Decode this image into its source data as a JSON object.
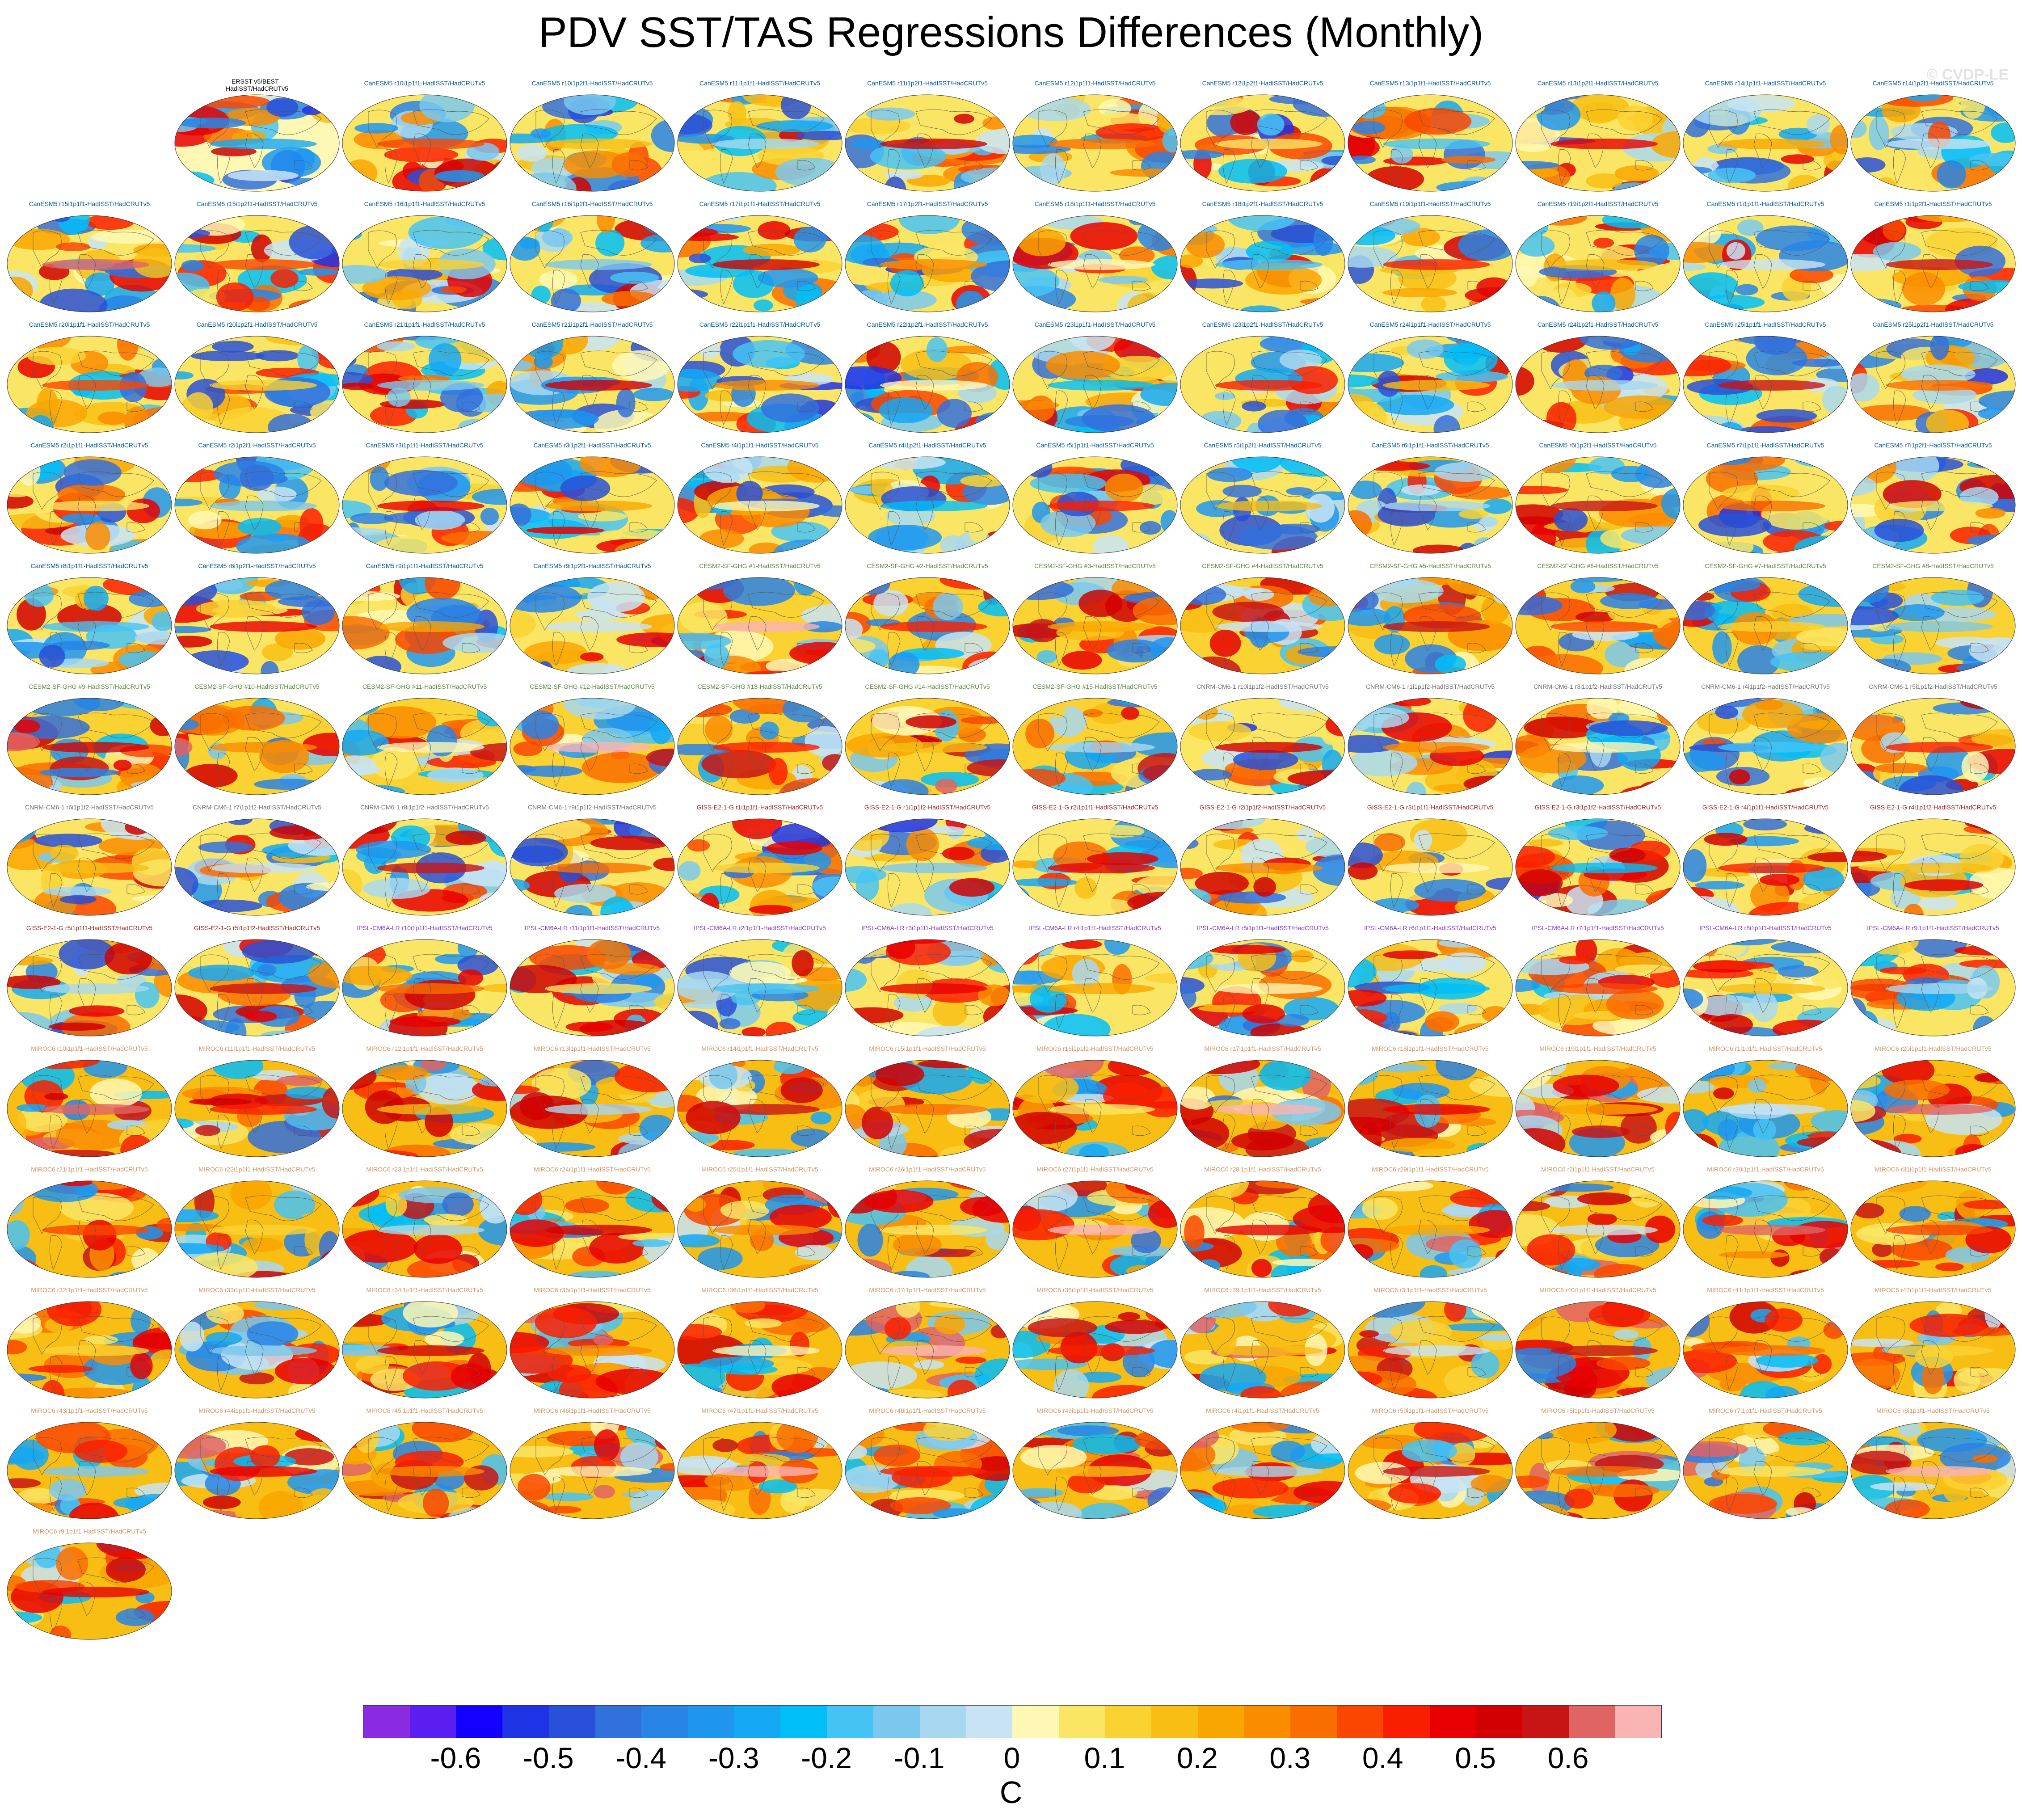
{
  "title": "PDV SST/TAS Regressions Differences (Monthly)",
  "copyright": "© CVDP-LE",
  "colorbar": {
    "units": "C",
    "tick_labels": [
      "-0.6",
      "-0.5",
      "-0.4",
      "-0.3",
      "-0.2",
      "-0.1",
      "0",
      "0.1",
      "0.2",
      "0.3",
      "0.4",
      "0.5",
      "0.6"
    ],
    "colors": [
      "#8a2be2",
      "#5a1ef0",
      "#1400ff",
      "#1e32e6",
      "#2850d8",
      "#3270dc",
      "#2884e6",
      "#1e96f0",
      "#14a8f5",
      "#00bef8",
      "#46c3f5",
      "#7ac8ee",
      "#a8d8f0",
      "#c8e4f4",
      "#fff8b4",
      "#fae664",
      "#fad232",
      "#f8be14",
      "#faa600",
      "#fa8c00",
      "#fa6e00",
      "#fa4600",
      "#fa1e00",
      "#e80000",
      "#d20000",
      "#c81414",
      "#e06464",
      "#fab4b4"
    ]
  },
  "group_colors": {
    "obs": "#000000",
    "CanESM5": "#005a9c",
    "CESM2-SF-GHG": "#5a8a3a",
    "CNRM-CM6-1": "#707070",
    "GISS-E2-1-G": "#a0281e",
    "IPSL-CM6A-LR": "#8a3cc8",
    "MIROC6": "#d29664"
  },
  "panels": [
    {
      "label": "ERSST v5/BEST -\nHadISST/HadCRUTv5",
      "group": "obs"
    },
    {
      "label": "CanESM5 r10i1p1f1-HadISST/HadCRUTv5",
      "group": "CanESM5"
    },
    {
      "label": "CanESM5 r10i1p2f1-HadISST/HadCRUTv5",
      "group": "CanESM5"
    },
    {
      "label": "CanESM5 r11i1p1f1-HadISST/HadCRUTv5",
      "group": "CanESM5"
    },
    {
      "label": "CanESM5 r11i1p2f1-HadISST/HadCRUTv5",
      "group": "CanESM5"
    },
    {
      "label": "CanESM5 r12i1p1f1-HadISST/HadCRUTv5",
      "group": "CanESM5"
    },
    {
      "label": "CanESM5 r12i1p2f1-HadISST/HadCRUTv5",
      "group": "CanESM5"
    },
    {
      "label": "CanESM5 r13i1p1f1-HadISST/HadCRUTv5",
      "group": "CanESM5"
    },
    {
      "label": "CanESM5 r13i1p2f1-HadISST/HadCRUTv5",
      "group": "CanESM5"
    },
    {
      "label": "CanESM5 r14i1p1f1-HadISST/HadCRUTv5",
      "group": "CanESM5"
    },
    {
      "label": "CanESM5 r14i1p2f1-HadISST/HadCRUTv5",
      "group": "CanESM5"
    },
    {
      "label": "CanESM5 r15i1p1f1-HadISST/HadCRUTv5",
      "group": "CanESM5"
    },
    {
      "label": "CanESM5 r15i1p2f1-HadISST/HadCRUTv5",
      "group": "CanESM5"
    },
    {
      "label": "CanESM5 r16i1p1f1-HadISST/HadCRUTv5",
      "group": "CanESM5"
    },
    {
      "label": "CanESM5 r16i1p2f1-HadISST/HadCRUTv5",
      "group": "CanESM5"
    },
    {
      "label": "CanESM5 r17i1p1f1-HadISST/HadCRUTv5",
      "group": "CanESM5"
    },
    {
      "label": "CanESM5 r17i1p2f1-HadISST/HadCRUTv5",
      "group": "CanESM5"
    },
    {
      "label": "CanESM5 r18i1p1f1-HadISST/HadCRUTv5",
      "group": "CanESM5"
    },
    {
      "label": "CanESM5 r18i1p2f1-HadISST/HadCRUTv5",
      "group": "CanESM5"
    },
    {
      "label": "CanESM5 r19i1p1f1-HadISST/HadCRUTv5",
      "group": "CanESM5"
    },
    {
      "label": "CanESM5 r19i1p2f1-HadISST/HadCRUTv5",
      "group": "CanESM5"
    },
    {
      "label": "CanESM5 r1i1p1f1-HadISST/HadCRUTv5",
      "group": "CanESM5"
    },
    {
      "label": "CanESM5 r1i1p2f1-HadISST/HadCRUTv5",
      "group": "CanESM5"
    },
    {
      "label": "CanESM5 r20i1p1f1-HadISST/HadCRUTv5",
      "group": "CanESM5"
    },
    {
      "label": "CanESM5 r20i1p2f1-HadISST/HadCRUTv5",
      "group": "CanESM5"
    },
    {
      "label": "CanESM5 r21i1p1f1-HadISST/HadCRUTv5",
      "group": "CanESM5"
    },
    {
      "label": "CanESM5 r21i1p2f1-HadISST/HadCRUTv5",
      "group": "CanESM5"
    },
    {
      "label": "CanESM5 r22i1p1f1-HadISST/HadCRUTv5",
      "group": "CanESM5"
    },
    {
      "label": "CanESM5 r22i1p2f1-HadISST/HadCRUTv5",
      "group": "CanESM5"
    },
    {
      "label": "CanESM5 r23i1p1f1-HadISST/HadCRUTv5",
      "group": "CanESM5"
    },
    {
      "label": "CanESM5 r23i1p2f1-HadISST/HadCRUTv5",
      "group": "CanESM5"
    },
    {
      "label": "CanESM5 r24i1p1f1-HadISST/HadCRUTv5",
      "group": "CanESM5"
    },
    {
      "label": "CanESM5 r24i1p2f1-HadISST/HadCRUTv5",
      "group": "CanESM5"
    },
    {
      "label": "CanESM5 r25i1p1f1-HadISST/HadCRUTv5",
      "group": "CanESM5"
    },
    {
      "label": "CanESM5 r25i1p2f1-HadISST/HadCRUTv5",
      "group": "CanESM5"
    },
    {
      "label": "CanESM5 r2i1p1f1-HadISST/HadCRUTv5",
      "group": "CanESM5"
    },
    {
      "label": "CanESM5 r2i1p2f1-HadISST/HadCRUTv5",
      "group": "CanESM5"
    },
    {
      "label": "CanESM5 r3i1p1f1-HadISST/HadCRUTv5",
      "group": "CanESM5"
    },
    {
      "label": "CanESM5 r3i1p2f1-HadISST/HadCRUTv5",
      "group": "CanESM5"
    },
    {
      "label": "CanESM5 r4i1p1f1-HadISST/HadCRUTv5",
      "group": "CanESM5"
    },
    {
      "label": "CanESM5 r4i1p2f1-HadISST/HadCRUTv5",
      "group": "CanESM5"
    },
    {
      "label": "CanESM5 r5i1p1f1-HadISST/HadCRUTv5",
      "group": "CanESM5"
    },
    {
      "label": "CanESM5 r5i1p2f1-HadISST/HadCRUTv5",
      "group": "CanESM5"
    },
    {
      "label": "CanESM5 r6i1p1f1-HadISST/HadCRUTv5",
      "group": "CanESM5"
    },
    {
      "label": "CanESM5 r6i1p2f1-HadISST/HadCRUTv5",
      "group": "CanESM5"
    },
    {
      "label": "CanESM5 r7i1p1f1-HadISST/HadCRUTv5",
      "group": "CanESM5"
    },
    {
      "label": "CanESM5 r7i1p2f1-HadISST/HadCRUTv5",
      "group": "CanESM5"
    },
    {
      "label": "CanESM5 r8i1p1f1-HadISST/HadCRUTv5",
      "group": "CanESM5"
    },
    {
      "label": "CanESM5 r8i1p2f1-HadISST/HadCRUTv5",
      "group": "CanESM5"
    },
    {
      "label": "CanESM5 r9i1p1f1-HadISST/HadCRUTv5",
      "group": "CanESM5"
    },
    {
      "label": "CanESM5 r9i1p2f1-HadISST/HadCRUTv5",
      "group": "CanESM5"
    },
    {
      "label": "CESM2-SF-GHG #1-HadISST/HadCRUTv5",
      "group": "CESM2-SF-GHG"
    },
    {
      "label": "CESM2-SF-GHG #2-HadISST/HadCRUTv5",
      "group": "CESM2-SF-GHG"
    },
    {
      "label": "CESM2-SF-GHG #3-HadISST/HadCRUTv5",
      "group": "CESM2-SF-GHG"
    },
    {
      "label": "CESM2-SF-GHG #4-HadISST/HadCRUTv5",
      "group": "CESM2-SF-GHG"
    },
    {
      "label": "CESM2-SF-GHG #5-HadISST/HadCRUTv5",
      "group": "CESM2-SF-GHG"
    },
    {
      "label": "CESM2-SF-GHG #6-HadISST/HadCRUTv5",
      "group": "CESM2-SF-GHG"
    },
    {
      "label": "CESM2-SF-GHG #7-HadISST/HadCRUTv5",
      "group": "CESM2-SF-GHG"
    },
    {
      "label": "CESM2-SF-GHG #8-HadISST/HadCRUTv5",
      "group": "CESM2-SF-GHG"
    },
    {
      "label": "CESM2-SF-GHG #9-HadISST/HadCRUTv5",
      "group": "CESM2-SF-GHG"
    },
    {
      "label": "CESM2-SF-GHG #10-HadISST/HadCRUTv5",
      "group": "CESM2-SF-GHG"
    },
    {
      "label": "CESM2-SF-GHG #11-HadISST/HadCRUTv5",
      "group": "CESM2-SF-GHG"
    },
    {
      "label": "CESM2-SF-GHG #12-HadISST/HadCRUTv5",
      "group": "CESM2-SF-GHG"
    },
    {
      "label": "CESM2-SF-GHG #13-HadISST/HadCRUTv5",
      "group": "CESM2-SF-GHG"
    },
    {
      "label": "CESM2-SF-GHG #14-HadISST/HadCRUTv5",
      "group": "CESM2-SF-GHG"
    },
    {
      "label": "CESM2-SF-GHG #15-HadISST/HadCRUTv5",
      "group": "CESM2-SF-GHG"
    },
    {
      "label": "CNRM-CM6-1 r10i1p1f2-HadISST/HadCRUTv5",
      "group": "CNRM-CM6-1"
    },
    {
      "label": "CNRM-CM6-1 r1i1p1f2-HadISST/HadCRUTv5",
      "group": "CNRM-CM6-1"
    },
    {
      "label": "CNRM-CM6-1 r3i1p1f2-HadISST/HadCRUTv5",
      "group": "CNRM-CM6-1"
    },
    {
      "label": "CNRM-CM6-1 r4i1p1f2-HadISST/HadCRUTv5",
      "group": "CNRM-CM6-1"
    },
    {
      "label": "CNRM-CM6-1 r5i1p1f2-HadISST/HadCRUTv5",
      "group": "CNRM-CM6-1"
    },
    {
      "label": "CNRM-CM6-1 r6i1p1f2-HadISST/HadCRUTv5",
      "group": "CNRM-CM6-1"
    },
    {
      "label": "CNRM-CM6-1 r7i1p1f2-HadISST/HadCRUTv5",
      "group": "CNRM-CM6-1"
    },
    {
      "label": "CNRM-CM6-1 r8i1p1f2-HadISST/HadCRUTv5",
      "group": "CNRM-CM6-1"
    },
    {
      "label": "CNRM-CM6-1 r9i1p1f2-HadISST/HadCRUTv5",
      "group": "CNRM-CM6-1"
    },
    {
      "label": "GISS-E2-1-G r1i1p1f1-HadISST/HadCRUTv5",
      "group": "GISS-E2-1-G"
    },
    {
      "label": "GISS-E2-1-G r1i1p1f2-HadISST/HadCRUTv5",
      "group": "GISS-E2-1-G"
    },
    {
      "label": "GISS-E2-1-G r2i1p1f1-HadISST/HadCRUTv5",
      "group": "GISS-E2-1-G"
    },
    {
      "label": "GISS-E2-1-G r2i1p1f2-HadISST/HadCRUTv5",
      "group": "GISS-E2-1-G"
    },
    {
      "label": "GISS-E2-1-G r3i1p1f1-HadISST/HadCRUTv5",
      "group": "GISS-E2-1-G"
    },
    {
      "label": "GISS-E2-1-G r3i1p1f2-HadISST/HadCRUTv5",
      "group": "GISS-E2-1-G"
    },
    {
      "label": "GISS-E2-1-G r4i1p1f1-HadISST/HadCRUTv5",
      "group": "GISS-E2-1-G"
    },
    {
      "label": "GISS-E2-1-G r4i1p1f2-HadISST/HadCRUTv5",
      "group": "GISS-E2-1-G"
    },
    {
      "label": "GISS-E2-1-G r5i1p1f1-HadISST/HadCRUTv5",
      "group": "GISS-E2-1-G"
    },
    {
      "label": "GISS-E2-1-G r5i1p1f2-HadISST/HadCRUTv5",
      "group": "GISS-E2-1-G"
    },
    {
      "label": "IPSL-CM6A-LR r10i1p1f1-HadISST/HadCRUTv5",
      "group": "IPSL-CM6A-LR"
    },
    {
      "label": "IPSL-CM6A-LR r11i1p1f1-HadISST/HadCRUTv5",
      "group": "IPSL-CM6A-LR"
    },
    {
      "label": "IPSL-CM6A-LR r2i1p1f1-HadISST/HadCRUTv5",
      "group": "IPSL-CM6A-LR"
    },
    {
      "label": "IPSL-CM6A-LR r3i1p1f1-HadISST/HadCRUTv5",
      "group": "IPSL-CM6A-LR"
    },
    {
      "label": "IPSL-CM6A-LR r4i1p1f1-HadISST/HadCRUTv5",
      "group": "IPSL-CM6A-LR"
    },
    {
      "label": "IPSL-CM6A-LR r5i1p1f1-HadISST/HadCRUTv5",
      "group": "IPSL-CM6A-LR"
    },
    {
      "label": "IPSL-CM6A-LR r6i1p1f1-HadISST/HadCRUTv5",
      "group": "IPSL-CM6A-LR"
    },
    {
      "label": "IPSL-CM6A-LR r7i1p1f1-HadISST/HadCRUTv5",
      "group": "IPSL-CM6A-LR"
    },
    {
      "label": "IPSL-CM6A-LR r8i1p1f1-HadISST/HadCRUTv5",
      "group": "IPSL-CM6A-LR"
    },
    {
      "label": "IPSL-CM6A-LR r9i1p1f1-HadISST/HadCRUTv5",
      "group": "IPSL-CM6A-LR"
    },
    {
      "label": "MIROC6 r10i1p1f1-HadISST/HadCRUTv5",
      "group": "MIROC6"
    },
    {
      "label": "MIROC6 r11i1p1f1-HadISST/HadCRUTv5",
      "group": "MIROC6"
    },
    {
      "label": "MIROC6 r12i1p1f1-HadISST/HadCRUTv5",
      "group": "MIROC6"
    },
    {
      "label": "MIROC6 r13i1p1f1-HadISST/HadCRUTv5",
      "group": "MIROC6"
    },
    {
      "label": "MIROC6 r14i1p1f1-HadISST/HadCRUTv5",
      "group": "MIROC6"
    },
    {
      "label": "MIROC6 r15i1p1f1-HadISST/HadCRUTv5",
      "group": "MIROC6"
    },
    {
      "label": "MIROC6 r16i1p1f1-HadISST/HadCRUTv5",
      "group": "MIROC6"
    },
    {
      "label": "MIROC6 r17i1p1f1-HadISST/HadCRUTv5",
      "group": "MIROC6"
    },
    {
      "label": "MIROC6 r18i1p1f1-HadISST/HadCRUTv5",
      "group": "MIROC6"
    },
    {
      "label": "MIROC6 r19i1p1f1-HadISST/HadCRUTv5",
      "group": "MIROC6"
    },
    {
      "label": "MIROC6 r1i1p1f1-HadISST/HadCRUTv5",
      "group": "MIROC6"
    },
    {
      "label": "MIROC6 r20i1p1f1-HadISST/HadCRUTv5",
      "group": "MIROC6"
    },
    {
      "label": "MIROC6 r21i1p1f1-HadISST/HadCRUTv5",
      "group": "MIROC6"
    },
    {
      "label": "MIROC6 r22i1p1f1-HadISST/HadCRUTv5",
      "group": "MIROC6"
    },
    {
      "label": "MIROC6 r23i1p1f1-HadISST/HadCRUTv5",
      "group": "MIROC6"
    },
    {
      "label": "MIROC6 r24i1p1f1-HadISST/HadCRUTv5",
      "group": "MIROC6"
    },
    {
      "label": "MIROC6 r25i1p1f1-HadISST/HadCRUTv5",
      "group": "MIROC6"
    },
    {
      "label": "MIROC6 r26i1p1f1-HadISST/HadCRUTv5",
      "group": "MIROC6"
    },
    {
      "label": "MIROC6 r27i1p1f1-HadISST/HadCRUTv5",
      "group": "MIROC6"
    },
    {
      "label": "MIROC6 r28i1p1f1-HadISST/HadCRUTv5",
      "group": "MIROC6"
    },
    {
      "label": "MIROC6 r29i1p1f1-HadISST/HadCRUTv5",
      "group": "MIROC6"
    },
    {
      "label": "MIROC6 r2i1p1f1-HadISST/HadCRUTv5",
      "group": "MIROC6"
    },
    {
      "label": "MIROC6 r30i1p1f1-HadISST/HadCRUTv5",
      "group": "MIROC6"
    },
    {
      "label": "MIROC6 r31i1p1f1-HadISST/HadCRUTv5",
      "group": "MIROC6"
    },
    {
      "label": "MIROC6 r32i1p1f1-HadISST/HadCRUTv5",
      "group": "MIROC6"
    },
    {
      "label": "MIROC6 r33i1p1f1-HadISST/HadCRUTv5",
      "group": "MIROC6"
    },
    {
      "label": "MIROC6 r34i1p1f1-HadISST/HadCRUTv5",
      "group": "MIROC6"
    },
    {
      "label": "MIROC6 r35i1p1f1-HadISST/HadCRUTv5",
      "group": "MIROC6"
    },
    {
      "label": "MIROC6 r36i1p1f1-HadISST/HadCRUTv5",
      "group": "MIROC6"
    },
    {
      "label": "MIROC6 r37i1p1f1-HadISST/HadCRUTv5",
      "group": "MIROC6"
    },
    {
      "label": "MIROC6 r38i1p1f1-HadISST/HadCRUTv5",
      "group": "MIROC6"
    },
    {
      "label": "MIROC6 r39i1p1f1-HadISST/HadCRUTv5",
      "group": "MIROC6"
    },
    {
      "label": "MIROC6 r3i1p1f1-HadISST/HadCRUTv5",
      "group": "MIROC6"
    },
    {
      "label": "MIROC6 r40i1p1f1-HadISST/HadCRUTv5",
      "group": "MIROC6"
    },
    {
      "label": "MIROC6 r41i1p1f1-HadISST/HadCRUTv5",
      "group": "MIROC6"
    },
    {
      "label": "MIROC6 r42i1p1f1-HadISST/HadCRUTv5",
      "group": "MIROC6"
    },
    {
      "label": "MIROC6 r43i1p1f1-HadISST/HadCRUTv5",
      "group": "MIROC6"
    },
    {
      "label": "MIROC6 r44i1p1f1-HadISST/HadCRUTv5",
      "group": "MIROC6"
    },
    {
      "label": "MIROC6 r45i1p1f1-HadISST/HadCRUTv5",
      "group": "MIROC6"
    },
    {
      "label": "MIROC6 r46i1p1f1-HadISST/HadCRUTv5",
      "group": "MIROC6"
    },
    {
      "label": "MIROC6 r47i1p1f1-HadISST/HadCRUTv5",
      "group": "MIROC6"
    },
    {
      "label": "MIROC6 r48i1p1f1-HadISST/HadCRUTv5",
      "group": "MIROC6"
    },
    {
      "label": "MIROC6 r49i1p1f1-HadISST/HadCRUTv5",
      "group": "MIROC6"
    },
    {
      "label": "MIROC6 r4i1p1f1-HadISST/HadCRUTv5",
      "group": "MIROC6"
    },
    {
      "label": "MIROC6 r50i1p1f1-HadISST/HadCRUTv5",
      "group": "MIROC6"
    },
    {
      "label": "MIROC6 r5i1p1f1-HadISST/HadCRUTv5",
      "group": "MIROC6"
    },
    {
      "label": "MIROC6 r7i1p1f1-HadISST/HadCRUTv5",
      "group": "MIROC6"
    },
    {
      "label": "MIROC6 r8i1p1f1-HadISST/HadCRUTv5",
      "group": "MIROC6"
    },
    {
      "label": "MIROC6 r9i1p1f1-HadISST/HadCRUTv5",
      "group": "MIROC6"
    }
  ]
}
